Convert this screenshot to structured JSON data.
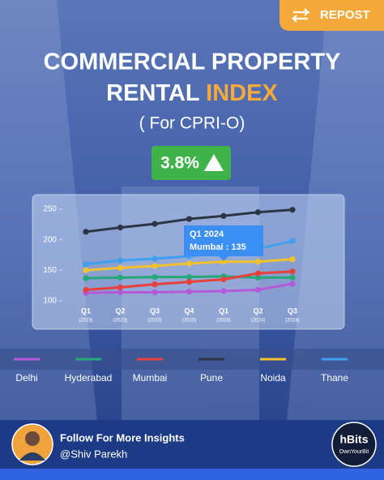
{
  "header": {
    "repost": "REPOST",
    "title_line1": "COMMERCIAL PROPERTY",
    "title_line2_a": "RENTAL",
    "title_line2_b": "INDEX",
    "subtitle": "( For CPRI-O)",
    "badge": "3.8%"
  },
  "chart_data": {
    "type": "line",
    "categories": [
      "Q1",
      "Q2",
      "Q3",
      "Q4",
      "Q1",
      "Q2",
      "Q3"
    ],
    "category_sublabels": [
      "(2023)",
      "(2023)",
      "(2023)",
      "(2023)",
      "(2024)",
      "(2024)",
      "(2024)"
    ],
    "series": [
      {
        "name": "Delhi",
        "color": "#b45ad8",
        "values": [
          113,
          114,
          114,
          115,
          116,
          118,
          128
        ]
      },
      {
        "name": "Hyderabad",
        "color": "#27a878",
        "values": [
          137,
          138,
          139,
          139,
          140,
          138,
          138
        ]
      },
      {
        "name": "Mumbai",
        "color": "#e8403a",
        "values": [
          118,
          122,
          127,
          131,
          135,
          145,
          148
        ]
      },
      {
        "name": "Pune",
        "color": "#2b3544",
        "values": [
          213,
          220,
          226,
          234,
          239,
          245,
          249
        ]
      },
      {
        "name": "Noida",
        "color": "#f2c12e",
        "values": [
          150,
          154,
          157,
          161,
          164,
          164,
          168
        ]
      },
      {
        "name": "Thane",
        "color": "#3ea0ef",
        "values": [
          160,
          166,
          169,
          173,
          178,
          185,
          198
        ]
      }
    ],
    "ylim": [
      100,
      250
    ],
    "yticks": [
      100,
      150,
      200,
      250
    ],
    "grid": false,
    "annotations": [
      {
        "title": "Q1 2024",
        "text": "Mumbai : 135"
      }
    ]
  },
  "footer": {
    "cta": "Follow For More Insights",
    "handle": "@Shiv Parekh",
    "logo": "hBits",
    "logo_tagline": "OwnYourBit"
  }
}
